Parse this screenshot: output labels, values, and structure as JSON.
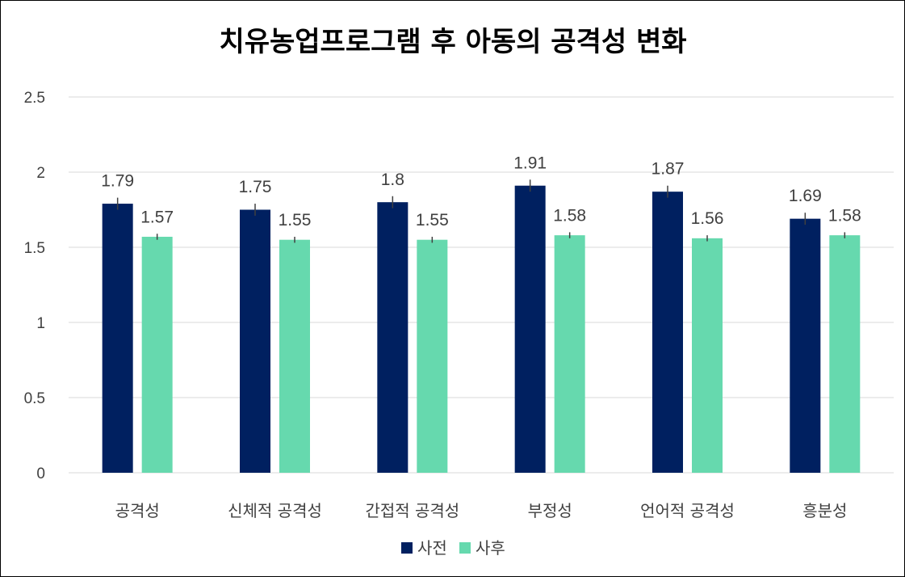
{
  "chart_data": {
    "type": "bar",
    "title": "치유농업프로그램 후 아동의 공격성 변화",
    "categories": [
      "공격성",
      "신체적 공격성",
      "간접적 공격성",
      "부정성",
      "언어적 공격성",
      "흥분성"
    ],
    "series": [
      {
        "name": "사전",
        "values": [
          1.79,
          1.75,
          1.8,
          1.91,
          1.87,
          1.69
        ],
        "color": "#002060"
      },
      {
        "name": "사후",
        "values": [
          1.57,
          1.55,
          1.55,
          1.58,
          1.56,
          1.58
        ],
        "color": "#66D9AE"
      }
    ],
    "data_labels": [
      [
        "1.79",
        "1.75",
        "1.8",
        "1.91",
        "1.87",
        "1.69"
      ],
      [
        "1.57",
        "1.55",
        "1.55",
        "1.58",
        "1.56",
        "1.58"
      ]
    ],
    "error_bars": [
      [
        0.04,
        0.04,
        0.04,
        0.04,
        0.04,
        0.04
      ],
      [
        0.02,
        0.02,
        0.02,
        0.02,
        0.02,
        0.02
      ]
    ],
    "yticks": [
      "0",
      "0.5",
      "1",
      "1.5",
      "2",
      "2.5"
    ],
    "ylim": [
      0,
      2.5
    ],
    "grid": true,
    "legend_position": "bottom-center"
  }
}
